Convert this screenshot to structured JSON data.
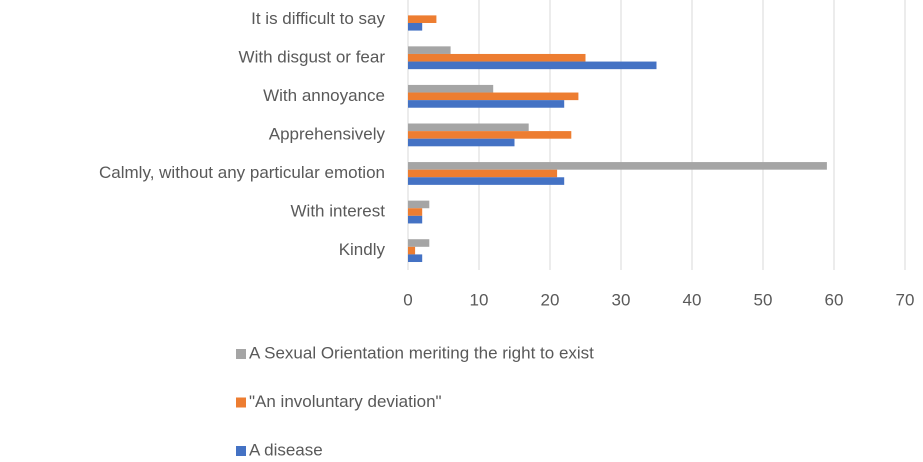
{
  "chart_data": {
    "type": "barh",
    "categories": [
      "It is difficult to say",
      "With disgust or fear",
      "With annoyance",
      "Apprehensively",
      "Calmly, without any particular emotion",
      "With interest",
      "Kindly"
    ],
    "series": [
      {
        "name": "A Sexual Orientation meriting the right to exist",
        "color": "#a5a5a5",
        "values": [
          0,
          6,
          12,
          17,
          59,
          3,
          3
        ]
      },
      {
        "name": "\"An involuntary deviation\"",
        "color": "#ed7d31",
        "values": [
          4,
          25,
          24,
          23,
          21,
          2,
          1
        ]
      },
      {
        "name": "A disease",
        "color": "#4472c4",
        "values": [
          2,
          35,
          22,
          15,
          22,
          2,
          2
        ]
      }
    ],
    "xlim": [
      0,
      70
    ],
    "xticks": [
      0,
      10,
      20,
      30,
      40,
      50,
      60,
      70
    ],
    "grid": true,
    "legend": "bottom"
  }
}
